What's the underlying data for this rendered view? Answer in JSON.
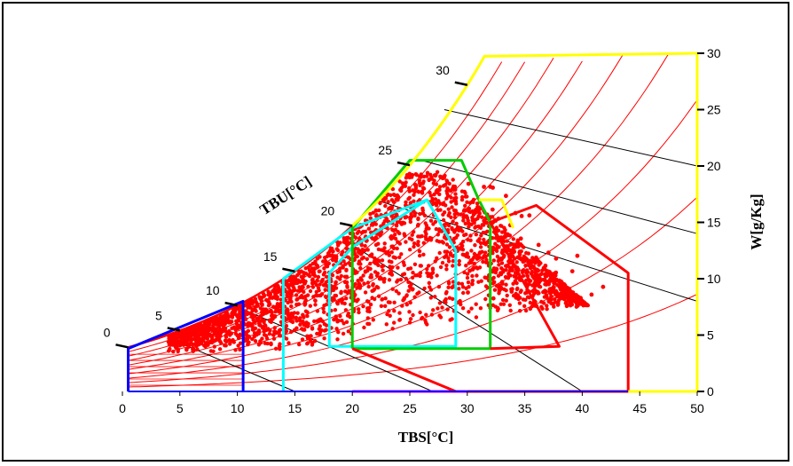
{
  "chart_data": {
    "type": "scatter",
    "title": "",
    "xlabel": "TBS[°C]",
    "ylabel": "W[g/Kg]",
    "wetbulb_label": "TBU[°C]",
    "xlim": [
      0,
      50
    ],
    "ylim": [
      0,
      30
    ],
    "x_ticks": [
      0,
      5,
      10,
      15,
      20,
      25,
      30,
      35,
      40,
      45,
      50
    ],
    "y_ticks": [
      0,
      5,
      10,
      15,
      20,
      25,
      30
    ],
    "wetbulb_ticks": [
      0,
      5,
      10,
      15,
      20,
      25,
      30
    ],
    "grid": false,
    "colors": {
      "saturation_curve": "#ff0000",
      "data_points": "#ff0000",
      "right_axis": "#ffff00",
      "zone_blue": "#0000ff",
      "zone_cyan": "#00ffff",
      "zone_green": "#00cc00",
      "zone_red": "#ff0000",
      "zone_magenta": "#ff00ff",
      "zone_yellow": "#ffff00",
      "enthalpy_lines": "#000000"
    },
    "zones": [
      {
        "color": "#0000ff",
        "points": [
          [
            0.5,
            0
          ],
          [
            0.5,
            3.8
          ],
          [
            10.5,
            8.0
          ],
          [
            10.5,
            0
          ]
        ]
      },
      {
        "color": "#00ffff",
        "points": [
          [
            14,
            0
          ],
          [
            14,
            10.0
          ],
          [
            20,
            14.5
          ],
          [
            26.5,
            17.0
          ],
          [
            29,
            12.5
          ],
          [
            29,
            4.0
          ],
          [
            18,
            4.0
          ],
          [
            18,
            10.5
          ],
          [
            20,
            12.8
          ],
          [
            26.5,
            17.0
          ]
        ]
      },
      {
        "color": "#00cc00",
        "points": [
          [
            20,
            3.8
          ],
          [
            20,
            14.5
          ],
          [
            25,
            20.5
          ],
          [
            29.5,
            20.5
          ],
          [
            31,
            17.0
          ],
          [
            32,
            15.0
          ],
          [
            32,
            3.8
          ],
          [
            20,
            3.8
          ]
        ]
      },
      {
        "color": "#ff0000",
        "points": [
          [
            30,
            0
          ],
          [
            44,
            0
          ],
          [
            44,
            10.5
          ],
          [
            36,
            16.5
          ],
          [
            32,
            15.0
          ],
          [
            38,
            4.0
          ],
          [
            32,
            3.8
          ]
        ]
      },
      {
        "color": "#ff00ff",
        "points": [
          [
            20,
            0
          ],
          [
            30,
            0
          ]
        ]
      },
      {
        "color": "#ffff00",
        "points": [
          [
            31,
            17.0
          ],
          [
            33,
            17.0
          ],
          [
            34,
            14.5
          ]
        ]
      }
    ],
    "scatter_region": {
      "description_points": [
        [
          5,
          4
        ],
        [
          10,
          7
        ],
        [
          15,
          10
        ],
        [
          20,
          13
        ],
        [
          25,
          17
        ],
        [
          28,
          19
        ],
        [
          32,
          17
        ],
        [
          35,
          14
        ],
        [
          38,
          10
        ],
        [
          40,
          8
        ]
      ],
      "x_range": [
        4,
        41
      ],
      "y_range": [
        4,
        19
      ]
    }
  }
}
